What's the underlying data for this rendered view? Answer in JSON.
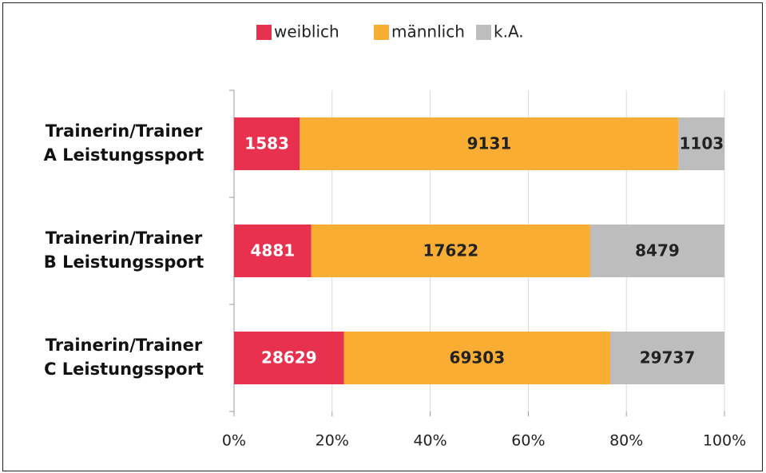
{
  "chart_data": {
    "type": "bar",
    "orientation": "horizontal",
    "stacking": "percent",
    "categories": [
      "Trainerin/Trainer\nA Leistungssport",
      "Trainerin/Trainer\nB Leistungssport",
      "Trainerin/Trainer\nC Leistungssport"
    ],
    "series": [
      {
        "name": "weiblich",
        "color": "#e8304f",
        "values": [
          1583,
          4881,
          28629
        ]
      },
      {
        "name": "männlich",
        "color": "#f9ad33",
        "values": [
          9131,
          17622,
          69303
        ]
      },
      {
        "name": "k.A.",
        "color": "#bdbdbd",
        "values": [
          1103,
          8479,
          29737
        ]
      }
    ],
    "xlim": [
      0,
      100
    ],
    "xticks": [
      {
        "value": 0,
        "label": "0%"
      },
      {
        "value": 20,
        "label": "20%"
      },
      {
        "value": 40,
        "label": "40%"
      },
      {
        "value": 60,
        "label": "60%"
      },
      {
        "value": 80,
        "label": "80%"
      },
      {
        "value": 100,
        "label": "100%"
      }
    ],
    "grid": true,
    "legend": "top"
  }
}
